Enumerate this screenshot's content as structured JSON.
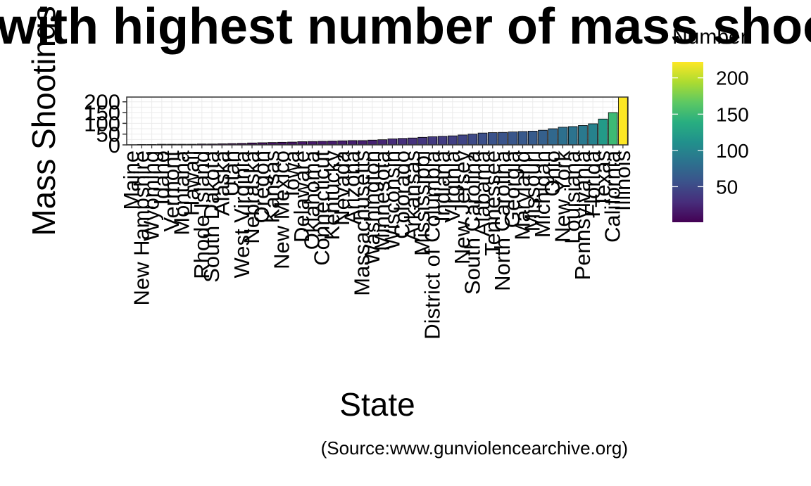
{
  "chart_data": {
    "type": "bar",
    "title": "States with highest number of mass shootings",
    "xlabel": "State",
    "ylabel": "Mass Shootings",
    "caption": "(Source:www.gunviolencearchive.org)",
    "legend": {
      "title": "Number",
      "ticks": [
        50,
        100,
        150,
        200
      ],
      "min": 1,
      "max": 222,
      "placement": "right"
    },
    "colors": [
      "#440154",
      "#472d7b",
      "#3b528b",
      "#2c728e",
      "#21918c",
      "#28ae80",
      "#5ec962",
      "#addc30",
      "#fde725"
    ],
    "ylim": [
      0,
      222
    ],
    "yticks": [
      0,
      50,
      100,
      150,
      200
    ],
    "grid": true,
    "categories": [
      "Maine",
      "New Hampshire",
      "Wyoming",
      "Idaho",
      "Vermont",
      "Montana",
      "Hawaii",
      "Rhode Island",
      "South Dakota",
      "Alaska",
      "Utah",
      "West Virginia",
      "Nebraska",
      "Oregon",
      "Kansas",
      "New Mexico",
      "Iowa",
      "Delaware",
      "Oklahoma",
      "Connecticut",
      "Kentucky",
      "Nevada",
      "Arizona",
      "Massachusetts",
      "Washington",
      "Minnesota",
      "Wisconsin",
      "Colorado",
      "Arkansas",
      "Mississippi",
      "District of Columbia",
      "Indiana",
      "Virginia",
      "New Jersey",
      "South Carolina",
      "Alabama",
      "Tennessee",
      "North Carolina",
      "Georgia",
      "Maryland",
      "Missouri",
      "Michigan",
      "Ohio",
      "New York",
      "Louisiana",
      "Pennsylvania",
      "Florida",
      "Texas",
      "California",
      "Illinois"
    ],
    "values": [
      1,
      2,
      2,
      3,
      3,
      3,
      3,
      4,
      4,
      5,
      6,
      7,
      9,
      10,
      11,
      12,
      13,
      15,
      16,
      17,
      18,
      19,
      20,
      20,
      22,
      24,
      28,
      30,
      32,
      35,
      38,
      40,
      42,
      46,
      50,
      55,
      57,
      58,
      60,
      62,
      64,
      68,
      75,
      82,
      85,
      90,
      98,
      120,
      150,
      222
    ]
  }
}
